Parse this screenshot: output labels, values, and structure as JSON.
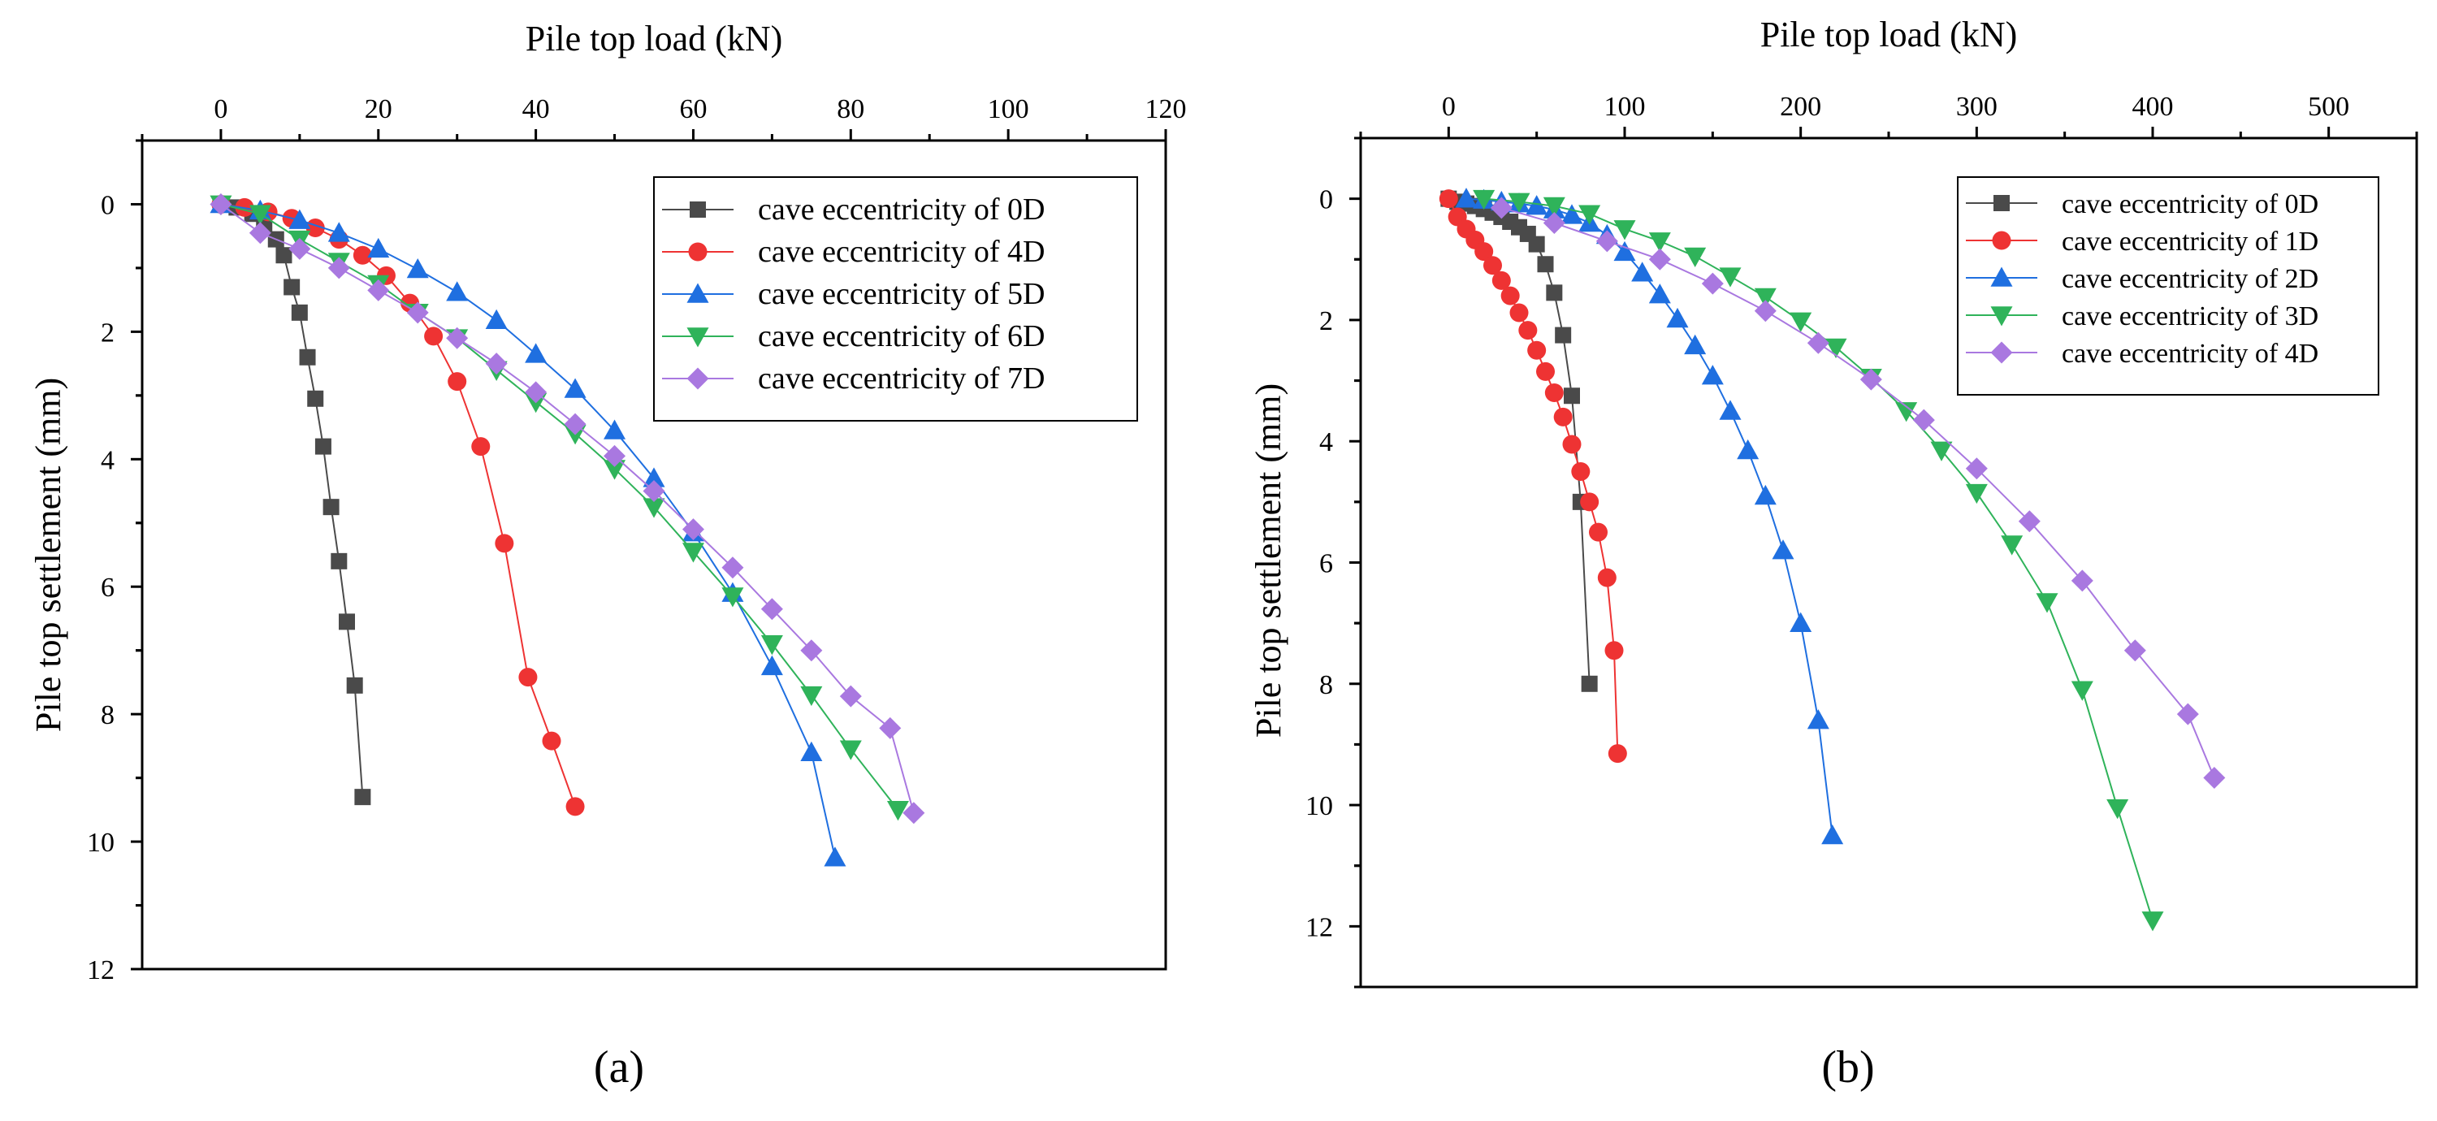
{
  "colors": {
    "s0": "#4a4a4a",
    "s1": "#ee3333",
    "s2": "#1f6fe0",
    "s3": "#2fb35a",
    "s4": "#a978e0"
  },
  "chart_data": [
    {
      "type": "scatter",
      "panel_label": "(a)",
      "xlabel": "Pile top load (kN)",
      "ylabel": "Pile top settlement (mm)",
      "xlim": [
        -10,
        120
      ],
      "ylim": [
        12,
        -1
      ],
      "xticks": [
        0,
        20,
        40,
        60,
        80,
        100,
        120
      ],
      "yticks": [
        0,
        2,
        4,
        6,
        8,
        10,
        12
      ],
      "legend_position": "top-right",
      "series": [
        {
          "name": "cave eccentricity of 0D",
          "marker": "square",
          "color": "#4a4a4a",
          "x": [
            0,
            2,
            4,
            5.5,
            7,
            8,
            9,
            10,
            11,
            12,
            13,
            14,
            15,
            16,
            17,
            18
          ],
          "y": [
            0,
            0.05,
            0.15,
            0.3,
            0.55,
            0.8,
            1.3,
            1.7,
            2.4,
            3.05,
            3.8,
            4.75,
            5.6,
            6.55,
            7.55,
            9.3
          ]
        },
        {
          "name": "cave eccentricity of 4D",
          "marker": "circle",
          "color": "#ee3333",
          "x": [
            0,
            3,
            6,
            9,
            12,
            15,
            18,
            21,
            24,
            27,
            30,
            33,
            36,
            39,
            42,
            45
          ],
          "y": [
            0,
            0.05,
            0.12,
            0.22,
            0.37,
            0.55,
            0.8,
            1.12,
            1.55,
            2.07,
            2.78,
            3.8,
            5.32,
            7.42,
            8.42,
            9.45
          ]
        },
        {
          "name": "cave eccentricity of 5D",
          "marker": "triangle-up",
          "color": "#1f6fe0",
          "x": [
            0,
            5,
            10,
            15,
            20,
            25,
            30,
            35,
            40,
            45,
            50,
            55,
            60,
            65,
            70,
            75,
            78
          ],
          "y": [
            0,
            0.1,
            0.25,
            0.45,
            0.7,
            1.02,
            1.38,
            1.82,
            2.35,
            2.9,
            3.55,
            4.3,
            5.15,
            6.1,
            7.25,
            8.6,
            10.25
          ]
        },
        {
          "name": "cave eccentricity of 6D",
          "marker": "triangle-down",
          "color": "#2fb35a",
          "x": [
            0,
            5,
            10,
            15,
            20,
            25,
            30,
            35,
            40,
            45,
            50,
            55,
            60,
            65,
            70,
            75,
            80,
            86
          ],
          "y": [
            0,
            0.15,
            0.55,
            0.9,
            1.25,
            1.7,
            2.1,
            2.6,
            3.1,
            3.6,
            4.15,
            4.75,
            5.45,
            6.15,
            6.9,
            7.7,
            8.55,
            9.5
          ]
        },
        {
          "name": "cave eccentricity of 7D",
          "marker": "diamond",
          "color": "#a978e0",
          "x": [
            0,
            5,
            10,
            15,
            20,
            25,
            30,
            35,
            40,
            45,
            50,
            55,
            60,
            65,
            70,
            75,
            80,
            85,
            88
          ],
          "y": [
            0,
            0.45,
            0.7,
            1.0,
            1.35,
            1.7,
            2.1,
            2.5,
            2.95,
            3.45,
            3.95,
            4.5,
            5.1,
            5.7,
            6.35,
            7.0,
            7.72,
            8.22,
            9.55
          ]
        }
      ]
    },
    {
      "type": "scatter",
      "panel_label": "(b)",
      "xlabel": "Pile top load (kN)",
      "ylabel": "Pile top settlement (mm)",
      "xlim": [
        -50,
        550
      ],
      "ylim": [
        13,
        -1
      ],
      "xticks": [
        0,
        100,
        200,
        300,
        400,
        500
      ],
      "yticks": [
        0,
        2,
        4,
        6,
        8,
        10,
        12
      ],
      "legend_position": "top-right",
      "series": [
        {
          "name": "cave eccentricity of 0D",
          "marker": "square",
          "color": "#4a4a4a",
          "x": [
            0,
            5,
            10,
            15,
            20,
            25,
            30,
            35,
            40,
            45,
            50,
            55,
            60,
            65,
            70,
            75,
            80
          ],
          "y": [
            0,
            0.05,
            0.08,
            0.12,
            0.17,
            0.23,
            0.3,
            0.38,
            0.47,
            0.58,
            0.75,
            1.08,
            1.55,
            2.25,
            3.25,
            5.0,
            8.0
          ]
        },
        {
          "name": "cave eccentricity of 1D",
          "marker": "circle",
          "color": "#ee3333",
          "x": [
            0,
            5,
            10,
            15,
            20,
            25,
            30,
            35,
            40,
            45,
            50,
            55,
            60,
            65,
            70,
            75,
            80,
            85,
            90,
            94,
            96
          ],
          "y": [
            0,
            0.3,
            0.5,
            0.68,
            0.87,
            1.1,
            1.35,
            1.6,
            1.88,
            2.17,
            2.5,
            2.85,
            3.2,
            3.6,
            4.05,
            4.5,
            5.0,
            5.5,
            6.25,
            7.45,
            9.15
          ]
        },
        {
          "name": "cave eccentricity of 2D",
          "marker": "triangle-up",
          "color": "#1f6fe0",
          "x": [
            10,
            20,
            30,
            40,
            50,
            60,
            70,
            80,
            90,
            100,
            110,
            120,
            130,
            140,
            150,
            160,
            170,
            180,
            190,
            200,
            210,
            218
          ],
          "y": [
            0,
            0.02,
            0.05,
            0.08,
            0.12,
            0.18,
            0.27,
            0.4,
            0.6,
            0.88,
            1.22,
            1.58,
            1.98,
            2.42,
            2.92,
            3.5,
            4.15,
            4.9,
            5.8,
            7.0,
            8.6,
            10.5
          ]
        },
        {
          "name": "cave eccentricity of 3D",
          "marker": "triangle-down",
          "color": "#2fb35a",
          "x": [
            20,
            40,
            60,
            80,
            100,
            120,
            140,
            160,
            180,
            200,
            220,
            240,
            260,
            280,
            300,
            320,
            340,
            360,
            380,
            400
          ],
          "y": [
            0,
            0.05,
            0.12,
            0.25,
            0.5,
            0.7,
            0.95,
            1.28,
            1.62,
            2.02,
            2.45,
            2.95,
            3.5,
            4.15,
            4.85,
            5.7,
            6.65,
            8.1,
            10.05,
            11.9
          ]
        },
        {
          "name": "cave eccentricity of 4D",
          "marker": "diamond",
          "color": "#a978e0",
          "x": [
            30,
            60,
            90,
            120,
            150,
            180,
            210,
            240,
            270,
            300,
            330,
            360,
            390,
            420,
            435
          ],
          "y": [
            0.15,
            0.4,
            0.7,
            1.0,
            1.4,
            1.85,
            2.38,
            2.98,
            3.65,
            4.45,
            5.32,
            6.3,
            7.45,
            8.5,
            9.55
          ]
        }
      ]
    }
  ]
}
